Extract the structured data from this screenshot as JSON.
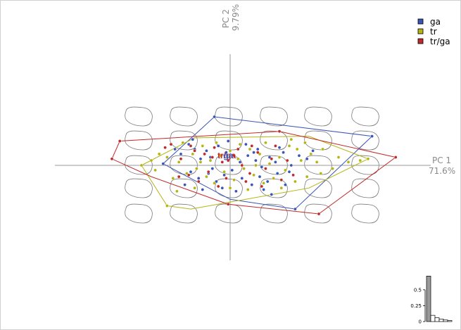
{
  "chart_data": {
    "type": "scatter",
    "title": "",
    "axes": {
      "x": {
        "label": "PC 1",
        "percent": "71.6%"
      },
      "y": {
        "label": "PC 2",
        "percent": "9.79%"
      }
    },
    "grid": false,
    "legend_position": "top-right",
    "xlim": [
      -1.0,
      1.0
    ],
    "ylim": [
      -1.0,
      1.0
    ],
    "series": [
      {
        "name": "ga",
        "color": "#3a55b5",
        "points": [
          [
            -0.08,
            0.3
          ],
          [
            0.72,
            0.18
          ],
          [
            0.33,
            -0.27
          ],
          [
            -0.34,
            0.01
          ],
          [
            -0.21,
            0.13
          ],
          [
            -0.25,
            0.07
          ],
          [
            -0.18,
            0.1
          ],
          [
            -0.15,
            0.04
          ],
          [
            -0.12,
            0.09
          ],
          [
            -0.1,
            0.05
          ],
          [
            -0.06,
            0.12
          ],
          [
            -0.02,
            0.08
          ],
          [
            0.05,
            0.02
          ],
          [
            0.09,
            0.06
          ],
          [
            0.13,
            0.03
          ],
          [
            0.16,
            -0.01
          ],
          [
            0.2,
            0.05
          ],
          [
            0.23,
            0.02
          ],
          [
            0.27,
            0.08
          ],
          [
            0.31,
            0.0
          ],
          [
            0.35,
            0.06
          ],
          [
            -0.2,
            -0.04
          ],
          [
            -0.16,
            -0.08
          ],
          [
            -0.11,
            -0.05
          ],
          [
            -0.07,
            -0.1
          ],
          [
            -0.03,
            -0.06
          ],
          [
            0.01,
            -0.03
          ],
          [
            0.06,
            -0.08
          ],
          [
            0.11,
            -0.12
          ],
          [
            0.15,
            -0.07
          ],
          [
            0.19,
            -0.1
          ],
          [
            0.24,
            -0.05
          ],
          [
            0.28,
            -0.12
          ],
          [
            -0.23,
            -0.12
          ],
          [
            -0.14,
            -0.15
          ],
          [
            -0.04,
            -0.14
          ],
          [
            0.03,
            -0.16
          ],
          [
            0.17,
            -0.15
          ],
          [
            0.25,
            0.11
          ],
          [
            0.39,
            0.04
          ],
          [
            -0.28,
            0.1
          ],
          [
            -0.01,
            0.15
          ],
          [
            0.08,
            0.13
          ],
          [
            0.14,
            0.1
          ],
          [
            -0.09,
            -0.02
          ],
          [
            0.3,
            -0.04
          ],
          [
            0.42,
            0.09
          ],
          [
            0.21,
            -0.18
          ],
          [
            -0.19,
            0.16
          ],
          [
            0.12,
            0.08
          ]
        ]
      },
      {
        "name": "tr",
        "color": "#b5b512",
        "points": [
          [
            -0.45,
            0.0
          ],
          [
            -0.38,
            -0.03
          ],
          [
            -0.32,
            0.05
          ],
          [
            -0.29,
            -0.08
          ],
          [
            -0.26,
            0.02
          ],
          [
            -0.22,
            -0.05
          ],
          [
            -0.19,
            0.07
          ],
          [
            -0.17,
            -0.02
          ],
          [
            -0.14,
            0.12
          ],
          [
            -0.12,
            -0.07
          ],
          [
            -0.1,
            0.03
          ],
          [
            -0.08,
            -0.11
          ],
          [
            -0.05,
            0.06
          ],
          [
            -0.03,
            -0.04
          ],
          [
            0.0,
            0.09
          ],
          [
            0.02,
            -0.09
          ],
          [
            0.04,
            0.04
          ],
          [
            0.07,
            -0.02
          ],
          [
            0.1,
            0.1
          ],
          [
            0.12,
            -0.06
          ],
          [
            0.15,
            0.07
          ],
          [
            0.17,
            -0.11
          ],
          [
            0.2,
            0.01
          ],
          [
            0.22,
            -0.08
          ],
          [
            0.25,
            0.05
          ],
          [
            0.28,
            -0.03
          ],
          [
            0.3,
            0.12
          ],
          [
            0.33,
            -0.1
          ],
          [
            0.36,
            0.03
          ],
          [
            0.38,
            0.14
          ],
          [
            0.41,
            0.07
          ],
          [
            0.44,
            0.02
          ],
          [
            0.47,
            0.1
          ],
          [
            0.55,
            0.05
          ],
          [
            0.6,
            0.02
          ],
          [
            0.66,
            0.03
          ],
          [
            0.7,
            0.04
          ],
          [
            -0.07,
            0.14
          ],
          [
            0.05,
            0.13
          ],
          [
            0.09,
            -0.15
          ],
          [
            -0.18,
            -0.14
          ],
          [
            -0.27,
            -0.16
          ],
          [
            -0.32,
            -0.25
          ],
          [
            -0.24,
            0.14
          ],
          [
            0.18,
            0.14
          ],
          [
            0.26,
            -0.14
          ],
          [
            0.34,
            0.1
          ],
          [
            0.46,
            -0.05
          ],
          [
            0.52,
            -0.02
          ],
          [
            -0.36,
            0.07
          ],
          [
            -0.4,
            0.03
          ],
          [
            0.0,
            -0.14
          ],
          [
            0.13,
            0.0
          ],
          [
            -0.15,
            0.02
          ],
          [
            0.31,
            0.16
          ],
          [
            0.39,
            -0.07
          ]
        ]
      },
      {
        "name": "tr/ga",
        "color": "#c02a2a",
        "points": [
          [
            -0.6,
            0.04
          ],
          [
            -0.56,
            0.15
          ],
          [
            0.25,
            0.21
          ],
          [
            0.84,
            0.05
          ],
          [
            0.45,
            -0.3
          ],
          [
            -0.01,
            -0.24
          ],
          [
            -0.3,
            0.13
          ],
          [
            -0.25,
            0.04
          ],
          [
            -0.21,
            -0.06
          ],
          [
            -0.18,
            0.09
          ],
          [
            -0.13,
            0.07
          ],
          [
            -0.11,
            -0.04
          ],
          [
            -0.08,
            0.11
          ],
          [
            -0.04,
            0.02
          ],
          [
            -0.02,
            -0.08
          ],
          [
            0.02,
            0.06
          ],
          [
            0.06,
            0.0
          ],
          [
            0.1,
            -0.05
          ],
          [
            0.14,
            0.08
          ],
          [
            0.18,
            -0.02
          ],
          [
            0.21,
            0.04
          ],
          [
            0.26,
            -0.09
          ],
          [
            0.29,
            0.03
          ],
          [
            -0.16,
            -0.1
          ],
          [
            -0.06,
            -0.13
          ],
          [
            0.08,
            -0.1
          ],
          [
            0.16,
            -0.13
          ],
          [
            -0.26,
            -0.07
          ],
          [
            -0.09,
            0.05
          ],
          [
            0.04,
            0.1
          ],
          [
            0.23,
            0.12
          ],
          [
            0.32,
            -0.06
          ],
          [
            -0.2,
            0.12
          ],
          [
            -0.33,
            0.11
          ],
          [
            0.11,
            0.12
          ],
          [
            -0.01,
            0.03
          ]
        ]
      }
    ],
    "hulls": [
      {
        "series": "ga",
        "vertices": [
          [
            -0.08,
            0.3
          ],
          [
            0.72,
            0.18
          ],
          [
            0.33,
            -0.27
          ],
          [
            0.0,
            -0.21
          ],
          [
            -0.34,
            0.01
          ]
        ]
      },
      {
        "series": "tr",
        "vertices": [
          [
            -0.45,
            0.0
          ],
          [
            -0.18,
            0.17
          ],
          [
            0.4,
            0.18
          ],
          [
            0.7,
            0.04
          ],
          [
            0.4,
            -0.14
          ],
          [
            -0.2,
            -0.27
          ],
          [
            -0.32,
            -0.25
          ]
        ]
      },
      {
        "series": "tr/ga",
        "vertices": [
          [
            -0.6,
            0.04
          ],
          [
            -0.56,
            0.15
          ],
          [
            0.25,
            0.21
          ],
          [
            0.84,
            0.05
          ],
          [
            0.45,
            -0.3
          ],
          [
            -0.01,
            -0.24
          ],
          [
            -0.4,
            -0.07
          ]
        ]
      }
    ],
    "group_labels": [
      {
        "text": "tr/ga",
        "x": 0.0,
        "y": 0.06,
        "color": "#c02a2a"
      },
      {
        "text": "ga",
        "x": 0.03,
        "y": 0.06,
        "color": "#3a55b5"
      }
    ],
    "eigenvalues": {
      "type": "bar",
      "y_ticks": [
        "0",
        "0.25",
        "0.5"
      ],
      "ylim": [
        0,
        0.72
      ],
      "values": [
        0.716,
        0.098,
        0.06,
        0.04,
        0.025,
        0.018
      ],
      "fill_first": "#9a9a9a",
      "fill_rest": "#ffffff"
    },
    "background_shapes": {
      "columns": 6,
      "rows": 5,
      "stroke": "#7a7a7a"
    }
  }
}
